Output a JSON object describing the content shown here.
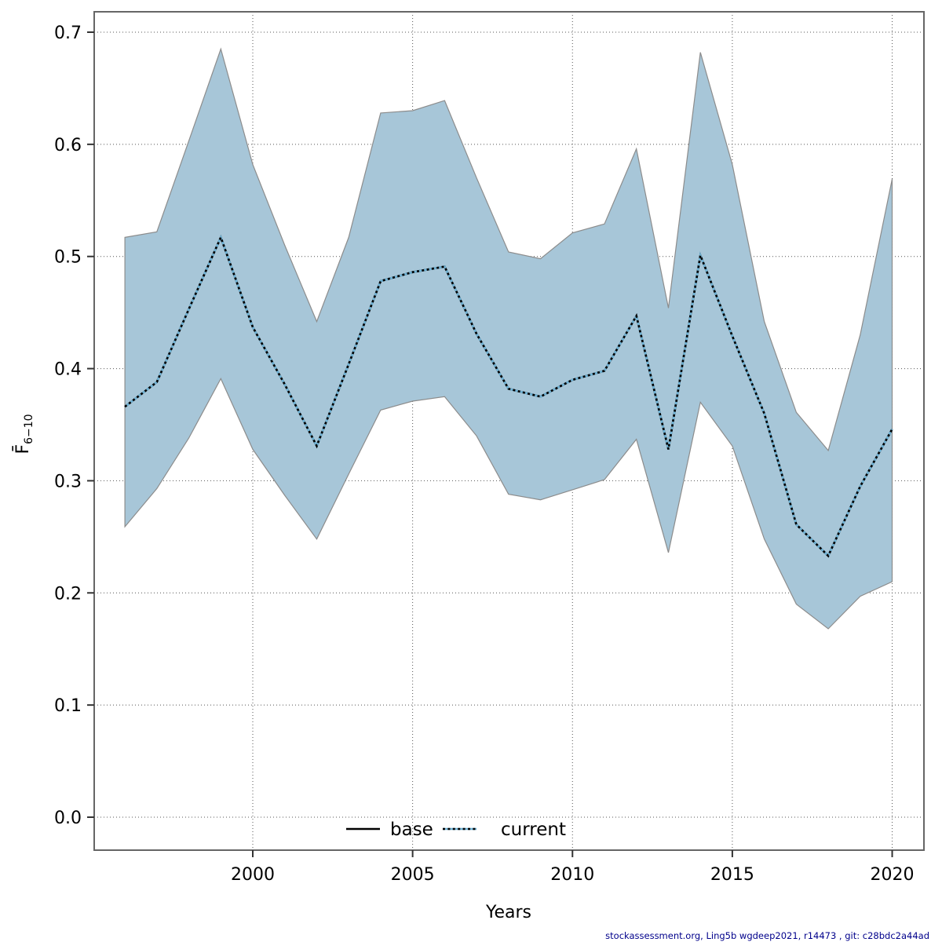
{
  "chart_data": {
    "type": "line",
    "title": "",
    "xlabel": "Years",
    "ylabel": "F̄6−10",
    "ylabel_main": "F̄",
    "ylabel_sub": "6−10",
    "xticks": [
      2000,
      2005,
      2010,
      2015,
      2020
    ],
    "yticks": [
      0.0,
      0.1,
      0.2,
      0.3,
      0.4,
      0.5,
      0.6,
      0.7
    ],
    "ylim": [
      0.0,
      0.7
    ],
    "xlim": [
      1995,
      2021
    ],
    "grid": "dotted",
    "legend_position": "bottom-center",
    "years": [
      1996,
      1997,
      1998,
      1999,
      2000,
      2001,
      2002,
      2003,
      2004,
      2005,
      2006,
      2007,
      2008,
      2009,
      2010,
      2011,
      2012,
      2013,
      2014,
      2015,
      2016,
      2017,
      2018,
      2019,
      2020
    ],
    "series": [
      {
        "name": "base",
        "style": "solid",
        "color": "#000000",
        "values": [
          0.366,
          0.388,
          0.453,
          0.517,
          0.437,
          0.386,
          0.331,
          0.404,
          0.478,
          0.486,
          0.491,
          0.431,
          0.382,
          0.375,
          0.39,
          0.398,
          0.447,
          0.328,
          0.501,
          0.429,
          0.36,
          0.261,
          0.233,
          0.295,
          0.346
        ]
      },
      {
        "name": "current",
        "style": "dotted",
        "color": "#6fb3d6",
        "dash_color": "#000000",
        "values": [
          0.366,
          0.388,
          0.453,
          0.517,
          0.437,
          0.386,
          0.331,
          0.404,
          0.478,
          0.486,
          0.491,
          0.431,
          0.382,
          0.375,
          0.39,
          0.398,
          0.447,
          0.328,
          0.501,
          0.429,
          0.36,
          0.261,
          0.233,
          0.295,
          0.346
        ],
        "ci_lower": [
          0.259,
          0.293,
          0.338,
          0.391,
          0.328,
          0.287,
          0.248,
          0.306,
          0.363,
          0.371,
          0.375,
          0.34,
          0.288,
          0.283,
          0.292,
          0.301,
          0.337,
          0.236,
          0.37,
          0.331,
          0.248,
          0.19,
          0.168,
          0.197,
          0.21
        ],
        "ci_upper": [
          0.517,
          0.522,
          0.603,
          0.685,
          0.582,
          0.51,
          0.442,
          0.517,
          0.628,
          0.63,
          0.639,
          0.57,
          0.504,
          0.498,
          0.521,
          0.529,
          0.596,
          0.454,
          0.682,
          0.582,
          0.442,
          0.361,
          0.327,
          0.43,
          0.569
        ],
        "ci_fill": "#a7c6d8"
      }
    ],
    "legend": {
      "items": [
        {
          "label": "base"
        },
        {
          "label": "current"
        }
      ]
    }
  },
  "footer": {
    "text": "stockassessment.org, Ling5b wgdeep2021, r14473 , git: c28bdc2a44ad",
    "color": "#00008b"
  }
}
